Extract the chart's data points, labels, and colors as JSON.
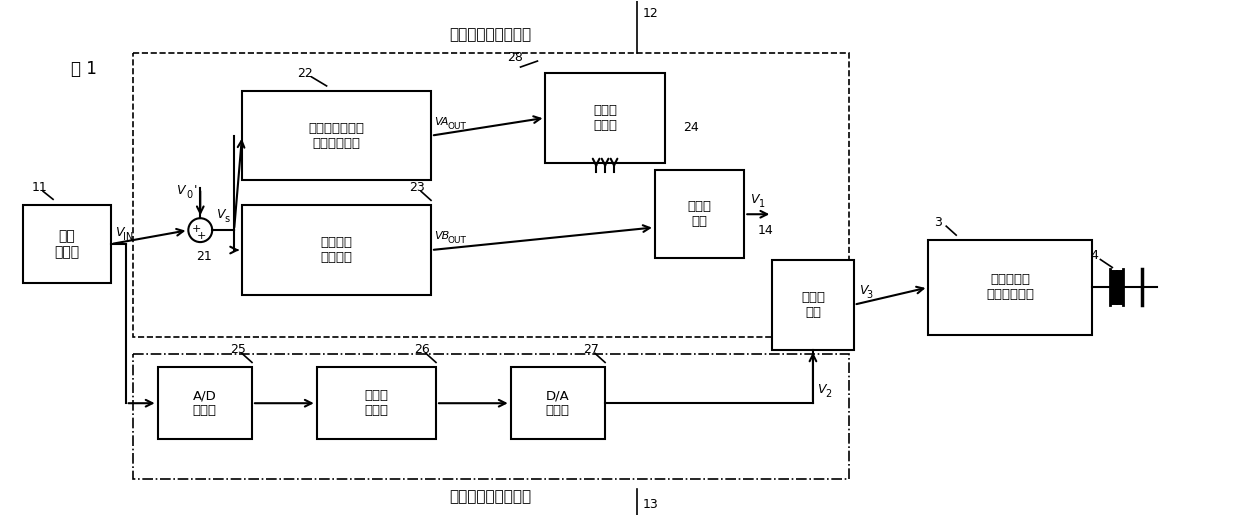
{
  "title": "图 1",
  "bg_color": "#ffffff",
  "fig_width": 12.39,
  "fig_height": 5.16,
  "top_section": "模拟型温度补偿部分",
  "bottom_section": "数字型温度补偿部分",
  "temp_sensor": "温度\n传感器",
  "block22": "三次分量和恒定\n分量产生部分",
  "block23": "一次分量\n产生分部",
  "block28_mem": "非易失\n存储器",
  "block24_adder": "加法器\n电路",
  "block25": "A/D\n转换器",
  "block26": "非易失\n存储器",
  "block27": "D/A\n转换器",
  "main_adder": "加法器\n电路",
  "vcxo": "电压控制的\n晶体振荡电路",
  "num_11": "11",
  "num_12": "12",
  "num_13": "13",
  "num_14": "14",
  "num_21": "21",
  "num_22": "22",
  "num_23": "23",
  "num_24": "24",
  "num_25": "25",
  "num_26": "26",
  "num_27": "27",
  "num_28": "28",
  "num_3": "3",
  "num_4": "4",
  "label_vin": "V",
  "label_vin_sub": "IN",
  "label_vs": "V",
  "label_vs_sub": "s",
  "label_v0": "V",
  "label_v0_sub": "0",
  "label_vaout": "VA",
  "label_vaout_sub": "OUT",
  "label_vbout": "VB",
  "label_vbout_sub": "OUT",
  "label_v1": "V",
  "label_v1_sub": "1",
  "label_v2": "V",
  "label_v2_sub": "2",
  "label_v3": "V",
  "label_v3_sub": "3"
}
